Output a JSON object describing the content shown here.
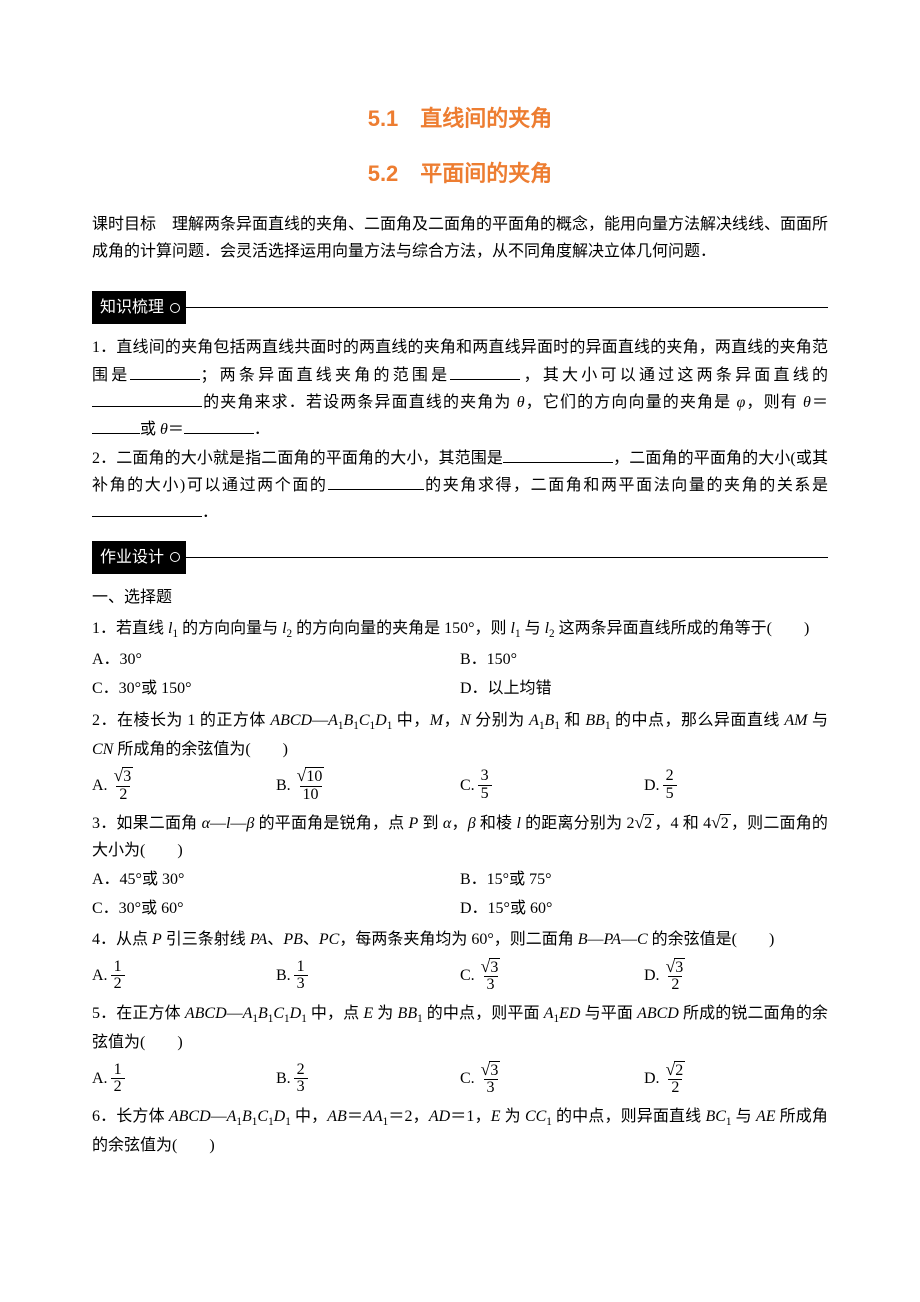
{
  "title1": "5.1　直线间的夹角",
  "title2": "5.2　平面间的夹角",
  "intro": "课时目标　理解两条异面直线的夹角、二面角及二面角的平面角的概念，能用向量方法解决线线、面面所成角的计算问题．会灵活选择运用向量方法与综合方法，从不同角度解决立体几何问题．",
  "banner1": "知识梳理",
  "banner2": "作业设计",
  "k1a": "1．直线间的夹角包括两直线共面时的两直线的夹角和两直线异面时的异面直线的夹角，两直线的夹角范围是",
  "k1b": "；两条异面直线夹角的范围是",
  "k1c": "，其大小可以通过这两条异面直线的",
  "k1d": "的夹角来求．若设两条异面直线的夹角为 ",
  "theta": "θ",
  "k1e": "，它们的方向向量的夹角是 ",
  "phi": "φ",
  "k1f": "，则有 ",
  "k1g": "＝",
  "k1h": "或 ",
  "k1i": "＝",
  "period": "．",
  "k2a": "2．二面角的大小就是指二面角的平面角的大小，其范围是",
  "k2b": "，二面角的平面角的大小(或其补角的大小)可以通过两个面的",
  "k2c": "的夹角求得，二面角和两平面法向量的夹角的关系是",
  "sec1": "一、选择题",
  "q1": {
    "stem_a": "1．若直线 ",
    "l1": "l",
    "s1": "1",
    "stem_b": " 的方向向量与 ",
    "l2": "l",
    "s2": "2",
    "stem_c": " 的方向向量的夹角是 150°，则 ",
    "stem_d": " 与 ",
    "stem_e": " 这两条异面直线所成的角等于(　　)",
    "A": "A．30°",
    "B": "B．150°",
    "C": "C．30°或 150°",
    "D": "D．以上均错"
  },
  "q2": {
    "stem_a": "2．在棱长为 1 的正方体 ",
    "abcd": "ABCD",
    "dash": "—",
    "a1": "A",
    "s1": "1",
    "b1": "B",
    "c1": "C",
    "d1": "D",
    "stem_b": " 中，",
    "mn": "M",
    "comma": "，",
    "n": "N",
    "stem_c": " 分别为 ",
    "and": " 和 ",
    "bb1": "BB",
    "stem_d": " 的中点，那么异面直线 ",
    "am": "AM",
    "with": " 与 ",
    "cn": "CN",
    "stem_e": " 所成角的余弦值为(　　)",
    "A": "A.",
    "B": "B.",
    "C": "C.",
    "D": "D."
  },
  "q3": {
    "stem_a": "3．如果二面角 ",
    "al": "α",
    "dash": "—",
    "l": "l",
    "be": "β",
    "stem_b": " 的平面角是锐角，点 ",
    "p": "P",
    "stem_c": " 到 ",
    "comma": "，",
    "and": " 和棱 ",
    "stem_d": " 的距离分别为 ",
    "four": "4",
    "and2": "和 ",
    "stem_e": "，则二面角的大小为(　　)",
    "A": "A．45°或 30°",
    "B": "B．15°或 75°",
    "C": "C．30°或 60°",
    "D": "D．15°或 60°"
  },
  "q4": {
    "stem_a": "4．从点 ",
    "p": "P",
    "stem_b": " 引三条射线 ",
    "pa": "PA",
    "sep": "、",
    "pb": "PB",
    "pc": "PC",
    "stem_c": "，每两条夹角均为 60°，则二面角 ",
    "b": "B",
    "dash": "—",
    "c": "C",
    "stem_d": " 的余弦值是(　　)",
    "A": "A.",
    "B": "B.",
    "C": "C.",
    "D": "D."
  },
  "q5": {
    "stem_a": "5．在正方体 ",
    "abcd": "ABCD",
    "dash": "—",
    "a": "A",
    "s1": "1",
    "b": "B",
    "c": "C",
    "d": "D",
    "stem_b": " 中，点 ",
    "e": "E",
    "stem_c": " 为 ",
    "bb": "BB",
    "stem_d": " 的中点，则平面 ",
    "ed": "ED",
    "stem_e": " 与平面 ",
    "stem_f": " 所成的锐二面角的余弦值为(　　)",
    "A": "A.",
    "B": "B.",
    "C": "C.",
    "D": "D."
  },
  "q6": {
    "stem_a": "6．长方体 ",
    "abcd": "ABCD",
    "dash": "—",
    "a": "A",
    "s1": "1",
    "b": "B",
    "c": "C",
    "d": "D",
    "stem_b": " 中，",
    "ab": "AB",
    "eq": "＝",
    "aa": "AA",
    "two": "＝2，",
    "ad": "AD",
    "one": "＝1，",
    "e": "E",
    "stem_c": " 为 ",
    "cc": "CC",
    "stem_d": " 的中点，则异面直线 ",
    "bc": "BC",
    "with": " 与 ",
    "ae": "AE",
    "stem_e": "所成角的余弦值为(　　)"
  }
}
